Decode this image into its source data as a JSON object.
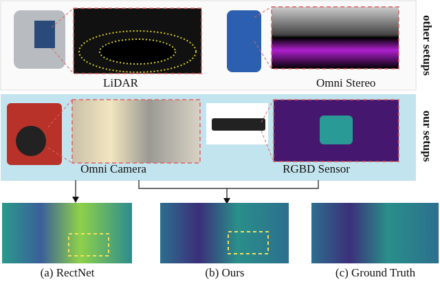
{
  "side_labels": {
    "top": "other setups",
    "middle": "our setups"
  },
  "setups": {
    "lidar": "LiDAR",
    "omni_stereo": "Omni Stereo",
    "omni_camera": "Omni Camera",
    "rgbd": "RGBD Sensor"
  },
  "results": [
    "(a) RectNet",
    "(b) Ours",
    "(c) Ground Truth"
  ]
}
